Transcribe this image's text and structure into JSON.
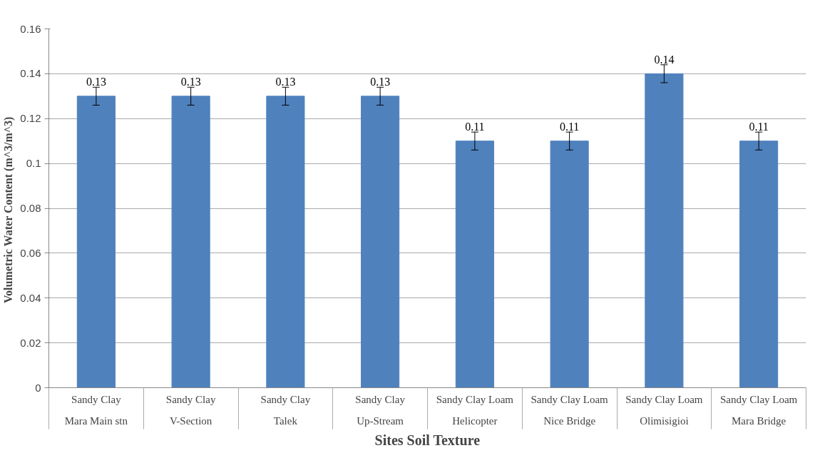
{
  "chart_data": {
    "type": "bar",
    "xlabel": "Sites Soil Texture",
    "ylabel": "Volumetric  Water Content (m^3/m^3)",
    "categories": [
      "Sandy Clay\nMara Main stn",
      "Sandy Clay\nV-Section",
      "Sandy Clay\nTalek",
      "Sandy Clay\nUp-Stream",
      "Sandy Clay Loam\nHelicopter",
      "Sandy Clay Loam\nNice Bridge",
      "Sandy Clay Loam\nOlimisigioi",
      "Sandy Clay Loam\nMara Bridge"
    ],
    "values": [
      0.13,
      0.13,
      0.13,
      0.13,
      0.11,
      0.11,
      0.14,
      0.11
    ],
    "errors": [
      0.004,
      0.004,
      0.004,
      0.004,
      0.004,
      0.004,
      0.004,
      0.004
    ],
    "color": "#4f81bd",
    "data_labels": true,
    "grid": "y",
    "ylim": [
      0,
      0.16
    ],
    "yticks": [
      {
        "value": 0,
        "label": "0"
      },
      0.02,
      0.04,
      0.06,
      0.08,
      {
        "value": 0.1,
        "label": "0.1"
      },
      0.12,
      0.14,
      0.16
    ]
  }
}
